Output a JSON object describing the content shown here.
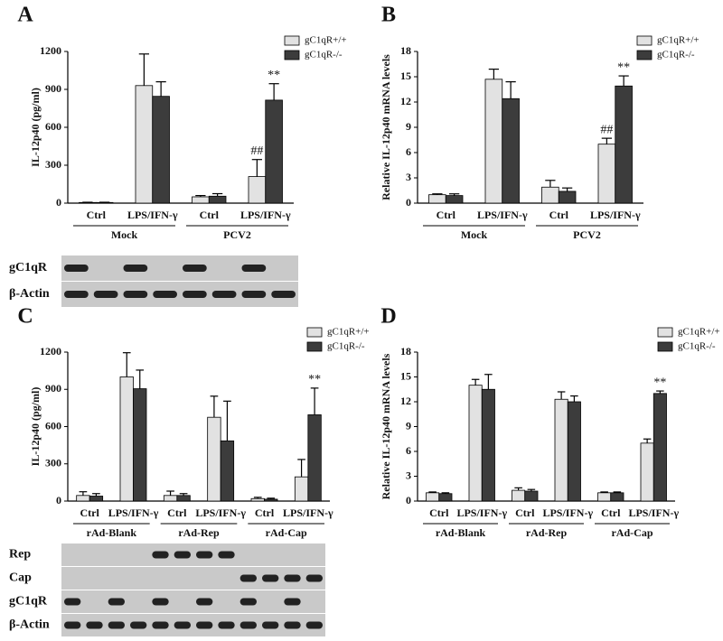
{
  "chart_data": [
    {
      "type": "bar",
      "panel": "A",
      "y_label": "IL-12p40 (pg/ml)",
      "categories": [
        "Ctrl",
        "LPS/IFN-γ",
        "Ctrl",
        "LPS/IFN-γ"
      ],
      "groups": [
        "Mock",
        "PCV2"
      ],
      "ylim": [
        0,
        1200
      ],
      "yticks": [
        0,
        300,
        600,
        900,
        1200
      ],
      "series": [
        {
          "name": "gC1qR+/+",
          "color": "#e2e2e2",
          "values": [
            5,
            930,
            50,
            210
          ],
          "error": [
            2,
            250,
            10,
            135
          ],
          "annotations": [
            null,
            null,
            null,
            "##"
          ]
        },
        {
          "name": "gC1qR-/-",
          "color": "#3c3c3c",
          "values": [
            5,
            845,
            55,
            815
          ],
          "error": [
            2,
            115,
            20,
            130
          ],
          "annotations": [
            null,
            null,
            null,
            "**"
          ]
        }
      ],
      "blot_rows": [
        "gC1qR",
        "β-Actin"
      ]
    },
    {
      "type": "bar",
      "panel": "B",
      "y_label": "Relative IL-12p40 mRNA levels",
      "categories": [
        "Ctrl",
        "LPS/IFN-γ",
        "Ctrl",
        "LPS/IFN-γ"
      ],
      "groups": [
        "Mock",
        "PCV2"
      ],
      "ylim": [
        0,
        18
      ],
      "yticks": [
        0,
        3,
        6,
        9,
        12,
        15,
        18
      ],
      "series": [
        {
          "name": "gC1qR+/+",
          "color": "#e2e2e2",
          "values": [
            1,
            14.7,
            1.9,
            7.0
          ],
          "error": [
            0.1,
            1.2,
            0.8,
            0.7
          ],
          "annotations": [
            null,
            null,
            null,
            "##"
          ]
        },
        {
          "name": "gC1qR-/-",
          "color": "#3c3c3c",
          "values": [
            0.9,
            12.4,
            1.4,
            13.9
          ],
          "error": [
            0.2,
            2.0,
            0.4,
            1.2
          ],
          "annotations": [
            null,
            null,
            null,
            "**"
          ]
        }
      ]
    },
    {
      "type": "bar",
      "panel": "C",
      "y_label": "IL-12p40 (pg/ml)",
      "categories": [
        "Ctrl",
        "LPS/IFN-γ",
        "Ctrl",
        "LPS/IFN-γ",
        "Ctrl",
        "LPS/IFN-γ"
      ],
      "groups": [
        "rAd-Blank",
        "rAd-Rep",
        "rAd-Cap"
      ],
      "ylim": [
        0,
        1200
      ],
      "yticks": [
        0,
        300,
        600,
        900,
        1200
      ],
      "series": [
        {
          "name": "gC1qR+/+",
          "color": "#e2e2e2",
          "values": [
            45,
            1000,
            45,
            675,
            20,
            195
          ],
          "error": [
            30,
            195,
            35,
            170,
            10,
            140
          ],
          "annotations": [
            null,
            null,
            null,
            null,
            null,
            null
          ]
        },
        {
          "name": "gC1qR-/-",
          "color": "#3c3c3c",
          "values": [
            40,
            905,
            45,
            485,
            15,
            695
          ],
          "error": [
            20,
            150,
            15,
            320,
            8,
            215
          ],
          "annotations": [
            null,
            null,
            null,
            null,
            null,
            "**"
          ]
        }
      ],
      "blot_rows": [
        "Rep",
        "Cap",
        "gC1qR",
        "β-Actin"
      ]
    },
    {
      "type": "bar",
      "panel": "D",
      "y_label": "Relative IL-12p40 mRNA levels",
      "categories": [
        "Ctrl",
        "LPS/IFN-γ",
        "Ctrl",
        "LPS/IFN-γ",
        "Ctrl",
        "LPS/IFN-γ"
      ],
      "groups": [
        "rAd-Blank",
        "rAd-Rep",
        "rAd-Cap"
      ],
      "ylim": [
        0,
        18
      ],
      "yticks": [
        0,
        3,
        6,
        9,
        12,
        15,
        18
      ],
      "series": [
        {
          "name": "gC1qR+/+",
          "color": "#e2e2e2",
          "values": [
            1.0,
            14.0,
            1.3,
            12.3,
            1.0,
            7.0
          ],
          "error": [
            0.1,
            0.7,
            0.3,
            0.9,
            0.1,
            0.5
          ],
          "annotations": [
            null,
            null,
            null,
            null,
            null,
            null
          ]
        },
        {
          "name": "gC1qR-/-",
          "color": "#3c3c3c",
          "values": [
            0.9,
            13.5,
            1.2,
            12.0,
            1.0,
            13.0
          ],
          "error": [
            0.1,
            1.8,
            0.2,
            0.7,
            0.1,
            0.3
          ],
          "annotations": [
            null,
            null,
            null,
            null,
            null,
            "**"
          ]
        }
      ]
    }
  ]
}
